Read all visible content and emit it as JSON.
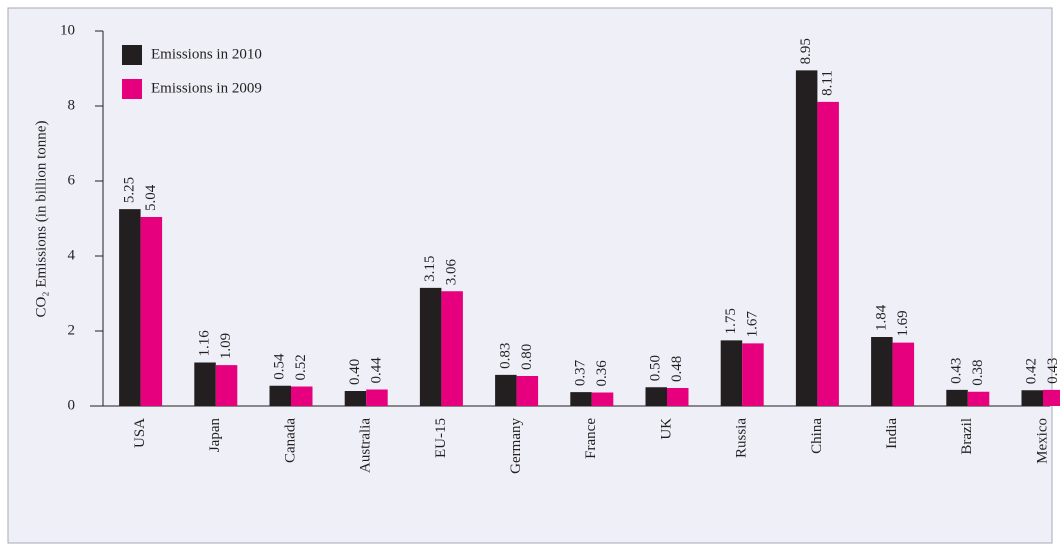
{
  "chart_data": {
    "type": "bar",
    "y_label": "CO₂ Emissions (in billion tonne)",
    "categories": [
      "USA",
      "Japan",
      "Canada",
      "Australia",
      "EU-15",
      "Germany",
      "France",
      "UK",
      "Russia",
      "China",
      "India",
      "Brazil",
      "Mexico"
    ],
    "series": [
      {
        "name": "Emissions in 2010",
        "color": "#231f20",
        "values": [
          5.25,
          1.16,
          0.54,
          0.4,
          3.15,
          0.83,
          0.37,
          0.5,
          1.75,
          8.95,
          1.84,
          0.43,
          0.42
        ],
        "value_labels": [
          "5.25",
          "1.16",
          "0.54",
          "0.40",
          "3.15",
          "0.83",
          "0.37",
          "0.50",
          "1.75",
          "8.95",
          "1.84",
          "0.43",
          "0.42"
        ]
      },
      {
        "name": "Emissions in 2009",
        "color": "#e6007e",
        "values": [
          5.04,
          1.09,
          0.52,
          0.44,
          3.06,
          0.8,
          0.36,
          0.48,
          1.67,
          8.11,
          1.69,
          0.38,
          0.43
        ],
        "value_labels": [
          "5.04",
          "1.09",
          "0.52",
          "0.44",
          "3.06",
          "0.80",
          "0.36",
          "0.48",
          "1.67",
          "8.11",
          "1.69",
          "0.38",
          "0.43"
        ]
      }
    ],
    "ylim": [
      0,
      10
    ],
    "yticks": [
      0,
      2,
      4,
      6,
      8,
      10
    ],
    "grid": false,
    "legend": "top-left"
  }
}
